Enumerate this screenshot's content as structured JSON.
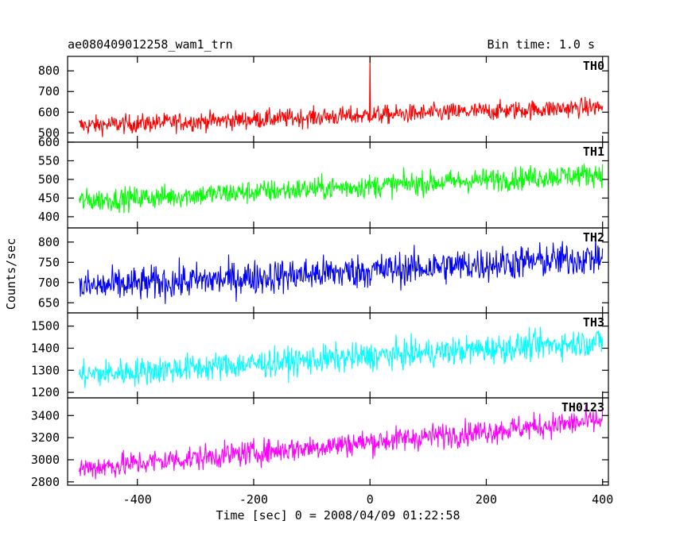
{
  "header": {
    "title": "ae080409012258_wam1_trn",
    "bin_time": "Bin time: 1.0 s"
  },
  "chart_data": {
    "type": "line",
    "ylabel": "Counts/sec",
    "xlabel": "Time [sec] 0 = 2008/04/09 01:22:58",
    "xlim": [
      -520,
      410
    ],
    "x_ticks": [
      -400,
      -200,
      0,
      200,
      400
    ],
    "x_range_data": [
      -500,
      400
    ],
    "panels": [
      {
        "name": "TH0",
        "color": "#ff0000",
        "ylim": [
          455,
          870
        ],
        "y_ticks": [
          500,
          600,
          700,
          800
        ],
        "trend_start": 535,
        "trend_end": 625,
        "noise": 32,
        "spike_at": 0,
        "spike_value": 870
      },
      {
        "name": "TH1",
        "color": "#00ff00",
        "ylim": [
          370,
          600
        ],
        "y_ticks": [
          400,
          450,
          500,
          550,
          600
        ],
        "trend_start": 442,
        "trend_end": 515,
        "noise": 22
      },
      {
        "name": "TH2",
        "color": "#0000ff",
        "ylim": [
          625,
          835
        ],
        "y_ticks": [
          650,
          700,
          750,
          800
        ],
        "trend_start": 688,
        "trend_end": 762,
        "noise": 30
      },
      {
        "name": "TH3",
        "color": "#00ffff",
        "ylim": [
          1175,
          1560
        ],
        "y_ticks": [
          1200,
          1300,
          1400,
          1500
        ],
        "trend_start": 1278,
        "trend_end": 1430,
        "noise": 45
      },
      {
        "name": "TH0123",
        "color": "#ff00ff",
        "ylim": [
          2770,
          3560
        ],
        "y_ticks": [
          2800,
          3000,
          3200,
          3400
        ],
        "trend_start": 2920,
        "trend_end": 3355,
        "noise": 80
      }
    ]
  }
}
